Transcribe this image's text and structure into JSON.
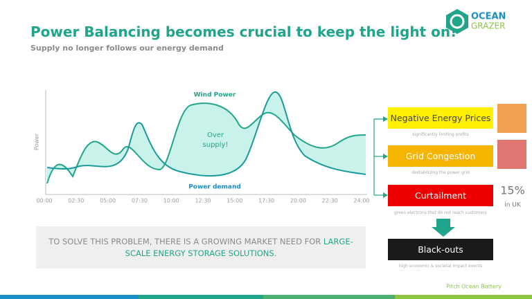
{
  "header": {
    "title": "Power Balancing becomes crucial to keep the light on!",
    "subtitle": "Supply no longer follows our energy demand"
  },
  "logo": {
    "line1": "OCEAN",
    "line2": "GRAZER"
  },
  "chart": {
    "y_label": "Power",
    "x_ticks": [
      "00:00",
      "02:30",
      "05:00",
      "07:30",
      "10:00",
      "12:30",
      "15:00",
      "17:30",
      "20:00",
      "22:30",
      "24:00"
    ],
    "wind_label": "Wind Power",
    "demand_label": "Power demand",
    "oversupply": [
      "Over",
      "supply!"
    ]
  },
  "consequences": [
    {
      "label": "Negative Energy Prices",
      "note": "significantly limiting profits"
    },
    {
      "label": "Grid Congestion",
      "note": "destabilizing the power grid"
    },
    {
      "label": "Curtailment",
      "note": "green electrons that do not reach customers"
    },
    {
      "label": "Black-outs",
      "note": "high economic & societal impact events"
    }
  ],
  "stat": {
    "value": "15%",
    "note": "in UK"
  },
  "callout": {
    "text": "TO SOLVE THIS PROBLEM, THERE IS A GROWING MARKET NEED FOR",
    "highlight": "LARGE-SCALE ENERGY STORAGE SOLUTIONS",
    "tail": "."
  },
  "footer": "Pitch Ocean Battery"
}
